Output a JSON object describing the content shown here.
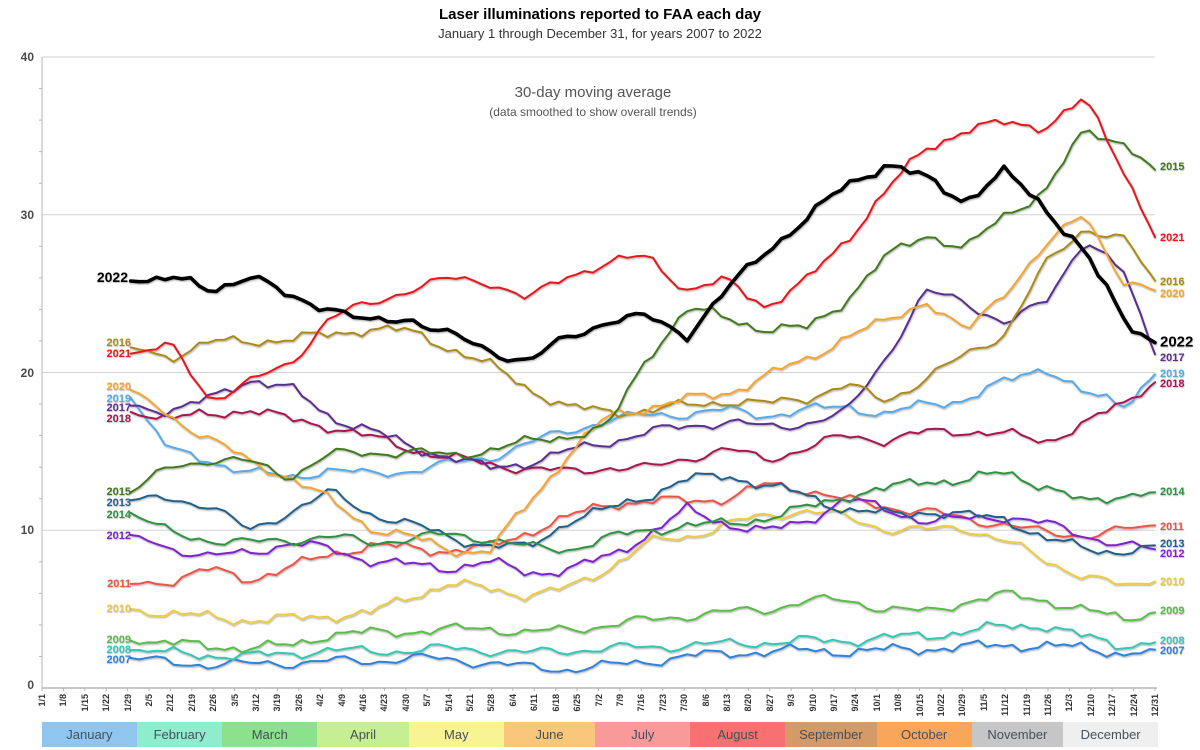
{
  "title": "Laser illuminations reported to FAA each day",
  "subtitle": "January 1 through December 31, for years 2007 to 2022",
  "annotation": {
    "line1": "30-day moving average",
    "line2": "(data smoothed to show overall trends)"
  },
  "chart_data": {
    "type": "line",
    "title": "Laser illuminations reported to FAA each day",
    "xlabel": "",
    "ylabel": "",
    "ylim": [
      0,
      40
    ],
    "y_ticks": [
      0,
      10,
      20,
      30,
      40
    ],
    "grid": "horizontal",
    "x_unit": "day of year (lines start at day 30 due to 30-day moving average)",
    "x_tick_labels": [
      "1/1",
      "1/8",
      "1/15",
      "1/22",
      "1/29",
      "2/5",
      "2/12",
      "2/19",
      "2/26",
      "3/5",
      "3/12",
      "3/19",
      "3/26",
      "4/2",
      "4/9",
      "4/16",
      "4/23",
      "4/30",
      "5/7",
      "5/14",
      "5/21",
      "5/28",
      "6/4",
      "6/11",
      "6/18",
      "6/25",
      "7/2",
      "7/9",
      "7/16",
      "7/23",
      "7/30",
      "8/6",
      "8/13",
      "8/20",
      "8/27",
      "9/3",
      "9/10",
      "9/17",
      "9/24",
      "10/1",
      "10/8",
      "10/15",
      "10/22",
      "10/29",
      "11/5",
      "11/12",
      "11/19",
      "11/26",
      "12/3",
      "12/10",
      "12/17",
      "12/24",
      "12/31"
    ],
    "sample_days": [
      30,
      43,
      56,
      69,
      82,
      95,
      108,
      121,
      134,
      147,
      160,
      173,
      186,
      199,
      212,
      225,
      238,
      251,
      264,
      277,
      290,
      303,
      316,
      329,
      342,
      355,
      365
    ],
    "series": [
      {
        "name": "2007",
        "color": "#2f81dd",
        "width": 2,
        "values": [
          1.9,
          1.6,
          1.5,
          1.5,
          1.6,
          1.7,
          1.7,
          1.9,
          1.8,
          1.6,
          1.3,
          1.2,
          1.4,
          1.7,
          2.0,
          2.2,
          2.3,
          2.4,
          2.3,
          2.4,
          2.5,
          2.6,
          2.7,
          2.7,
          2.5,
          2.2,
          2.4
        ]
      },
      {
        "name": "2008",
        "color": "#32c7b4",
        "width": 2,
        "values": [
          2.4,
          2.2,
          2.1,
          2.0,
          2.2,
          2.4,
          2.3,
          2.4,
          2.5,
          2.4,
          2.2,
          2.4,
          2.5,
          2.6,
          2.7,
          2.8,
          2.9,
          3.0,
          3.0,
          3.2,
          3.3,
          3.6,
          3.9,
          4.0,
          3.2,
          2.7,
          2.9
        ]
      },
      {
        "name": "2009",
        "color": "#5abc48",
        "width": 2,
        "values": [
          3.0,
          2.8,
          2.7,
          2.5,
          2.7,
          3.4,
          3.5,
          3.6,
          3.7,
          3.8,
          3.5,
          3.7,
          4.0,
          4.3,
          4.6,
          4.8,
          5.0,
          5.5,
          5.6,
          5.0,
          4.8,
          5.5,
          5.9,
          5.6,
          4.9,
          4.4,
          4.8
        ]
      },
      {
        "name": "2010",
        "color": "#eecb40",
        "width": 2,
        "values": [
          5.0,
          4.7,
          4.5,
          4.3,
          4.4,
          4.6,
          4.7,
          5.8,
          6.6,
          6.3,
          5.9,
          6.3,
          7.6,
          9.2,
          9.6,
          10.4,
          10.9,
          11.3,
          10.8,
          10.1,
          10.0,
          10.2,
          9.3,
          8.1,
          7.1,
          6.4,
          6.8
        ]
      },
      {
        "name": "2011",
        "color": "#ee5345",
        "width": 2,
        "values": [
          6.6,
          6.8,
          7.5,
          6.9,
          7.6,
          8.5,
          9.0,
          8.9,
          8.7,
          8.9,
          9.9,
          10.8,
          11.7,
          11.8,
          11.9,
          12.0,
          12.9,
          12.6,
          11.9,
          11.5,
          11.2,
          10.7,
          10.4,
          9.8,
          9.7,
          10.0,
          10.3
        ]
      },
      {
        "name": "2012",
        "color": "#7e22cf",
        "width": 2,
        "values": [
          9.7,
          8.9,
          8.3,
          8.6,
          9.2,
          8.8,
          8.1,
          7.8,
          7.6,
          8.0,
          7.3,
          7.5,
          8.3,
          9.7,
          11.3,
          10.4,
          9.9,
          10.6,
          12.0,
          11.3,
          10.6,
          10.7,
          10.9,
          10.4,
          9.7,
          9.0,
          8.8
        ]
      },
      {
        "name": "2013",
        "color": "#20608c",
        "width": 2,
        "values": [
          11.9,
          12.0,
          11.6,
          9.9,
          11.2,
          12.4,
          11.1,
          10.4,
          9.6,
          9.0,
          8.9,
          10.6,
          11.3,
          12.2,
          13.2,
          13.5,
          12.8,
          12.2,
          11.3,
          11.0,
          11.2,
          10.9,
          10.8,
          9.4,
          8.9,
          8.6,
          9.0
        ]
      },
      {
        "name": "2014",
        "color": "#2f9241",
        "width": 2,
        "values": [
          11.1,
          9.8,
          9.4,
          9.2,
          9.4,
          9.6,
          9.2,
          9.5,
          9.7,
          9.5,
          8.9,
          8.8,
          9.5,
          10.0,
          10.3,
          10.4,
          10.8,
          11.4,
          12.2,
          12.6,
          13.2,
          13.1,
          13.7,
          12.8,
          11.7,
          12.3,
          12.4
        ]
      },
      {
        "name": "2019",
        "color": "#57a9ea",
        "width": 2,
        "values": [
          18.4,
          15.0,
          14.4,
          13.7,
          13.3,
          13.9,
          13.5,
          13.8,
          14.2,
          14.6,
          15.5,
          16.3,
          17.0,
          17.3,
          17.4,
          17.6,
          17.3,
          17.6,
          17.9,
          17.3,
          18.0,
          18.3,
          19.4,
          20.4,
          18.6,
          18.0,
          19.9
        ]
      },
      {
        "name": "2018",
        "color": "#a81750",
        "width": 2,
        "values": [
          17.5,
          17.1,
          17.3,
          17.7,
          17.0,
          16.6,
          15.9,
          15.2,
          14.6,
          14.2,
          13.9,
          13.7,
          14.0,
          13.9,
          14.6,
          15.1,
          14.5,
          15.2,
          16.0,
          15.7,
          16.2,
          16.3,
          16.1,
          15.6,
          16.8,
          18.0,
          19.4
        ]
      },
      {
        "name": "2017",
        "color": "#5b2d90",
        "width": 2,
        "values": [
          17.9,
          17.6,
          18.3,
          19.6,
          19.0,
          17.2,
          16.4,
          15.3,
          14.7,
          13.9,
          14.3,
          15.0,
          15.6,
          16.2,
          16.6,
          16.9,
          16.5,
          16.8,
          17.4,
          21.0,
          25.1,
          24.5,
          23.1,
          24.4,
          28.5,
          26.2,
          21.2
        ]
      },
      {
        "name": "2016",
        "color": "#ad8a18",
        "width": 2,
        "values": [
          21.6,
          21.0,
          21.9,
          22.0,
          22.1,
          22.4,
          22.8,
          22.6,
          21.6,
          20.5,
          19.0,
          17.8,
          17.5,
          17.6,
          17.9,
          18.2,
          18.0,
          18.4,
          19.2,
          18.2,
          19.6,
          21.1,
          22.5,
          26.8,
          29.2,
          28.4,
          25.8
        ]
      },
      {
        "name": "2020",
        "color": "#f5a42e",
        "width": 2,
        "values": [
          18.9,
          17.2,
          15.8,
          14.3,
          13.4,
          11.9,
          10.2,
          9.6,
          8.8,
          8.6,
          11.7,
          14.8,
          17.2,
          17.8,
          18.3,
          18.7,
          19.8,
          20.8,
          22.3,
          23.2,
          24.6,
          22.5,
          25.2,
          27.9,
          30.2,
          25.6,
          25.2
        ]
      },
      {
        "name": "2015",
        "color": "#3f7a1e",
        "width": 2,
        "values": [
          12.4,
          14.0,
          14.5,
          14.3,
          13.4,
          14.8,
          14.9,
          15.0,
          14.7,
          15.1,
          15.6,
          16.0,
          16.5,
          21.0,
          24.0,
          23.5,
          22.7,
          22.8,
          24.6,
          27.3,
          28.8,
          27.8,
          30.0,
          31.5,
          35.3,
          34.6,
          32.8
        ]
      },
      {
        "name": "2021",
        "color": "#e8191f",
        "width": 2,
        "values": [
          21.2,
          21.7,
          18.3,
          19.4,
          20.5,
          23.5,
          24.3,
          25.3,
          25.9,
          25.8,
          24.6,
          26.2,
          26.9,
          27.4,
          25.2,
          25.8,
          24.2,
          25.8,
          28.4,
          31.5,
          34.2,
          35.4,
          35.8,
          35.6,
          37.3,
          32.8,
          28.6
        ]
      },
      {
        "name": "2022",
        "color": "#000000",
        "width": 3.6,
        "values": [
          25.8,
          26.0,
          25.2,
          26.2,
          24.7,
          24.2,
          23.1,
          23.5,
          22.4,
          21.4,
          20.7,
          22.2,
          23.3,
          23.5,
          22.4,
          25.2,
          27.8,
          29.7,
          31.9,
          33.2,
          32.3,
          30.9,
          32.7,
          30.5,
          27.6,
          23.3,
          21.9
        ]
      }
    ],
    "labels_left": [
      {
        "year": "2022",
        "val": 26.05,
        "big": true
      },
      {
        "year": "2016",
        "val": 21.9
      },
      {
        "year": "2021",
        "val": 21.15
      },
      {
        "year": "2020",
        "val": 19.05
      },
      {
        "year": "2019",
        "val": 18.35
      },
      {
        "year": "2017",
        "val": 17.75
      },
      {
        "year": "2018",
        "val": 17.05
      },
      {
        "year": "2015",
        "val": 12.45
      },
      {
        "year": "2013",
        "val": 11.75
      },
      {
        "year": "2014",
        "val": 10.95
      },
      {
        "year": "2012",
        "val": 9.65
      },
      {
        "year": "2011",
        "val": 6.6
      },
      {
        "year": "2010",
        "val": 5.0
      },
      {
        "year": "2009",
        "val": 3.05
      },
      {
        "year": "2008",
        "val": 2.4
      },
      {
        "year": "2007",
        "val": 1.75
      }
    ],
    "labels_right": [
      {
        "year": "2015",
        "val": 33.0
      },
      {
        "year": "2021",
        "val": 28.55
      },
      {
        "year": "2016",
        "val": 25.75
      },
      {
        "year": "2020",
        "val": 25.0
      },
      {
        "year": "2022",
        "val": 21.95,
        "big": true
      },
      {
        "year": "2017",
        "val": 20.95
      },
      {
        "year": "2019",
        "val": 19.9
      },
      {
        "year": "2018",
        "val": 19.25
      },
      {
        "year": "2014",
        "val": 12.4
      },
      {
        "year": "2011",
        "val": 10.2
      },
      {
        "year": "2013",
        "val": 9.15
      },
      {
        "year": "2012",
        "val": 8.5
      },
      {
        "year": "2010",
        "val": 6.75
      },
      {
        "year": "2009",
        "val": 4.85
      },
      {
        "year": "2008",
        "val": 3.0
      },
      {
        "year": "2007",
        "val": 2.35
      }
    ],
    "months": [
      {
        "label": "January",
        "days": 31,
        "color": "#8ec6f0"
      },
      {
        "label": "February",
        "days": 28,
        "color": "#8feccc"
      },
      {
        "label": "March",
        "days": 31,
        "color": "#8ce28c"
      },
      {
        "label": "April",
        "days": 30,
        "color": "#c6ee92"
      },
      {
        "label": "May",
        "days": 31,
        "color": "#f8f393"
      },
      {
        "label": "June",
        "days": 30,
        "color": "#f8c77c"
      },
      {
        "label": "July",
        "days": 31,
        "color": "#f89a9a"
      },
      {
        "label": "August",
        "days": 31,
        "color": "#f87070"
      },
      {
        "label": "September",
        "days": 30,
        "color": "#d49a67"
      },
      {
        "label": "October",
        "days": 31,
        "color": "#f9a55a"
      },
      {
        "label": "November",
        "days": 30,
        "color": "#c6c6c6"
      },
      {
        "label": "December",
        "days": 31,
        "color": "#efefef"
      }
    ],
    "layout": {
      "plot_left": 42,
      "plot_right": 1155,
      "plot_top": 57,
      "plot_bottom": 688,
      "grid_color": "#d2d2d2",
      "axis_color": "#b5b5b5"
    }
  }
}
